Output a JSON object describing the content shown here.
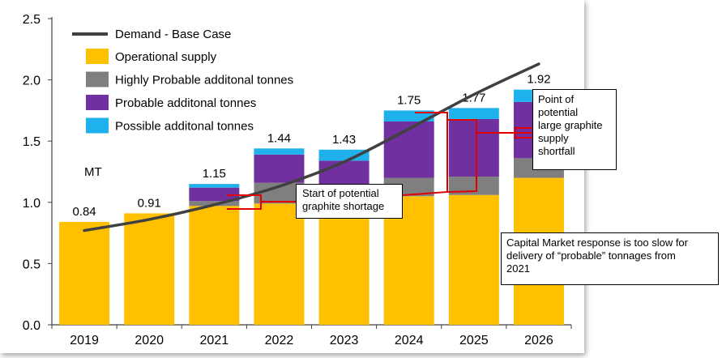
{
  "chart_data": {
    "type": "bar",
    "stacked": true,
    "categories": [
      "2019",
      "2020",
      "2021",
      "2022",
      "2023",
      "2024",
      "2025",
      "2026"
    ],
    "series": [
      {
        "name": "Operational supply",
        "color": "#FFC000",
        "values": [
          0.84,
          0.91,
          0.97,
          0.99,
          0.96,
          1.05,
          1.06,
          1.2
        ]
      },
      {
        "name": "Highly Probable additonal tonnes",
        "color": "#7F7F7F",
        "values": [
          0.0,
          0.0,
          0.04,
          0.17,
          0.1,
          0.15,
          0.15,
          0.16
        ]
      },
      {
        "name": "Probable additonal tonnes",
        "color": "#7030A0",
        "values": [
          0.0,
          0.0,
          0.11,
          0.23,
          0.28,
          0.46,
          0.47,
          0.46
        ]
      },
      {
        "name": "Possible additonal tonnes",
        "color": "#1EB1EC",
        "values": [
          0.0,
          0.0,
          0.03,
          0.05,
          0.09,
          0.09,
          0.09,
          0.1
        ]
      }
    ],
    "totals": [
      "0.84",
      "0.91",
      "1.15",
      "1.44",
      "1.43",
      "1.75",
      "1.77",
      "1.92"
    ],
    "line": {
      "name": "Demand - Base Case",
      "color": "#404040",
      "values": [
        0.77,
        0.86,
        0.98,
        1.13,
        1.33,
        1.6,
        1.88,
        2.13
      ]
    },
    "ylabel": "MT",
    "ylim": [
      0,
      2.5
    ],
    "yticks": [
      "0.0",
      "0.5",
      "1.0",
      "1.5",
      "2.0",
      "2.5"
    ],
    "legend_position": "top-left",
    "grid": false
  },
  "annotations": {
    "shortage_start": [
      "Start of potential",
      "graphite shortage"
    ],
    "shortfall_point": [
      "Point of",
      "potential",
      "large graphite",
      "supply",
      "shortfall"
    ],
    "capital_market": [
      "Capital Market response is too slow for",
      "delivery of “probable” tonnages from",
      "2021"
    ],
    "callout_color": "#E00000"
  }
}
